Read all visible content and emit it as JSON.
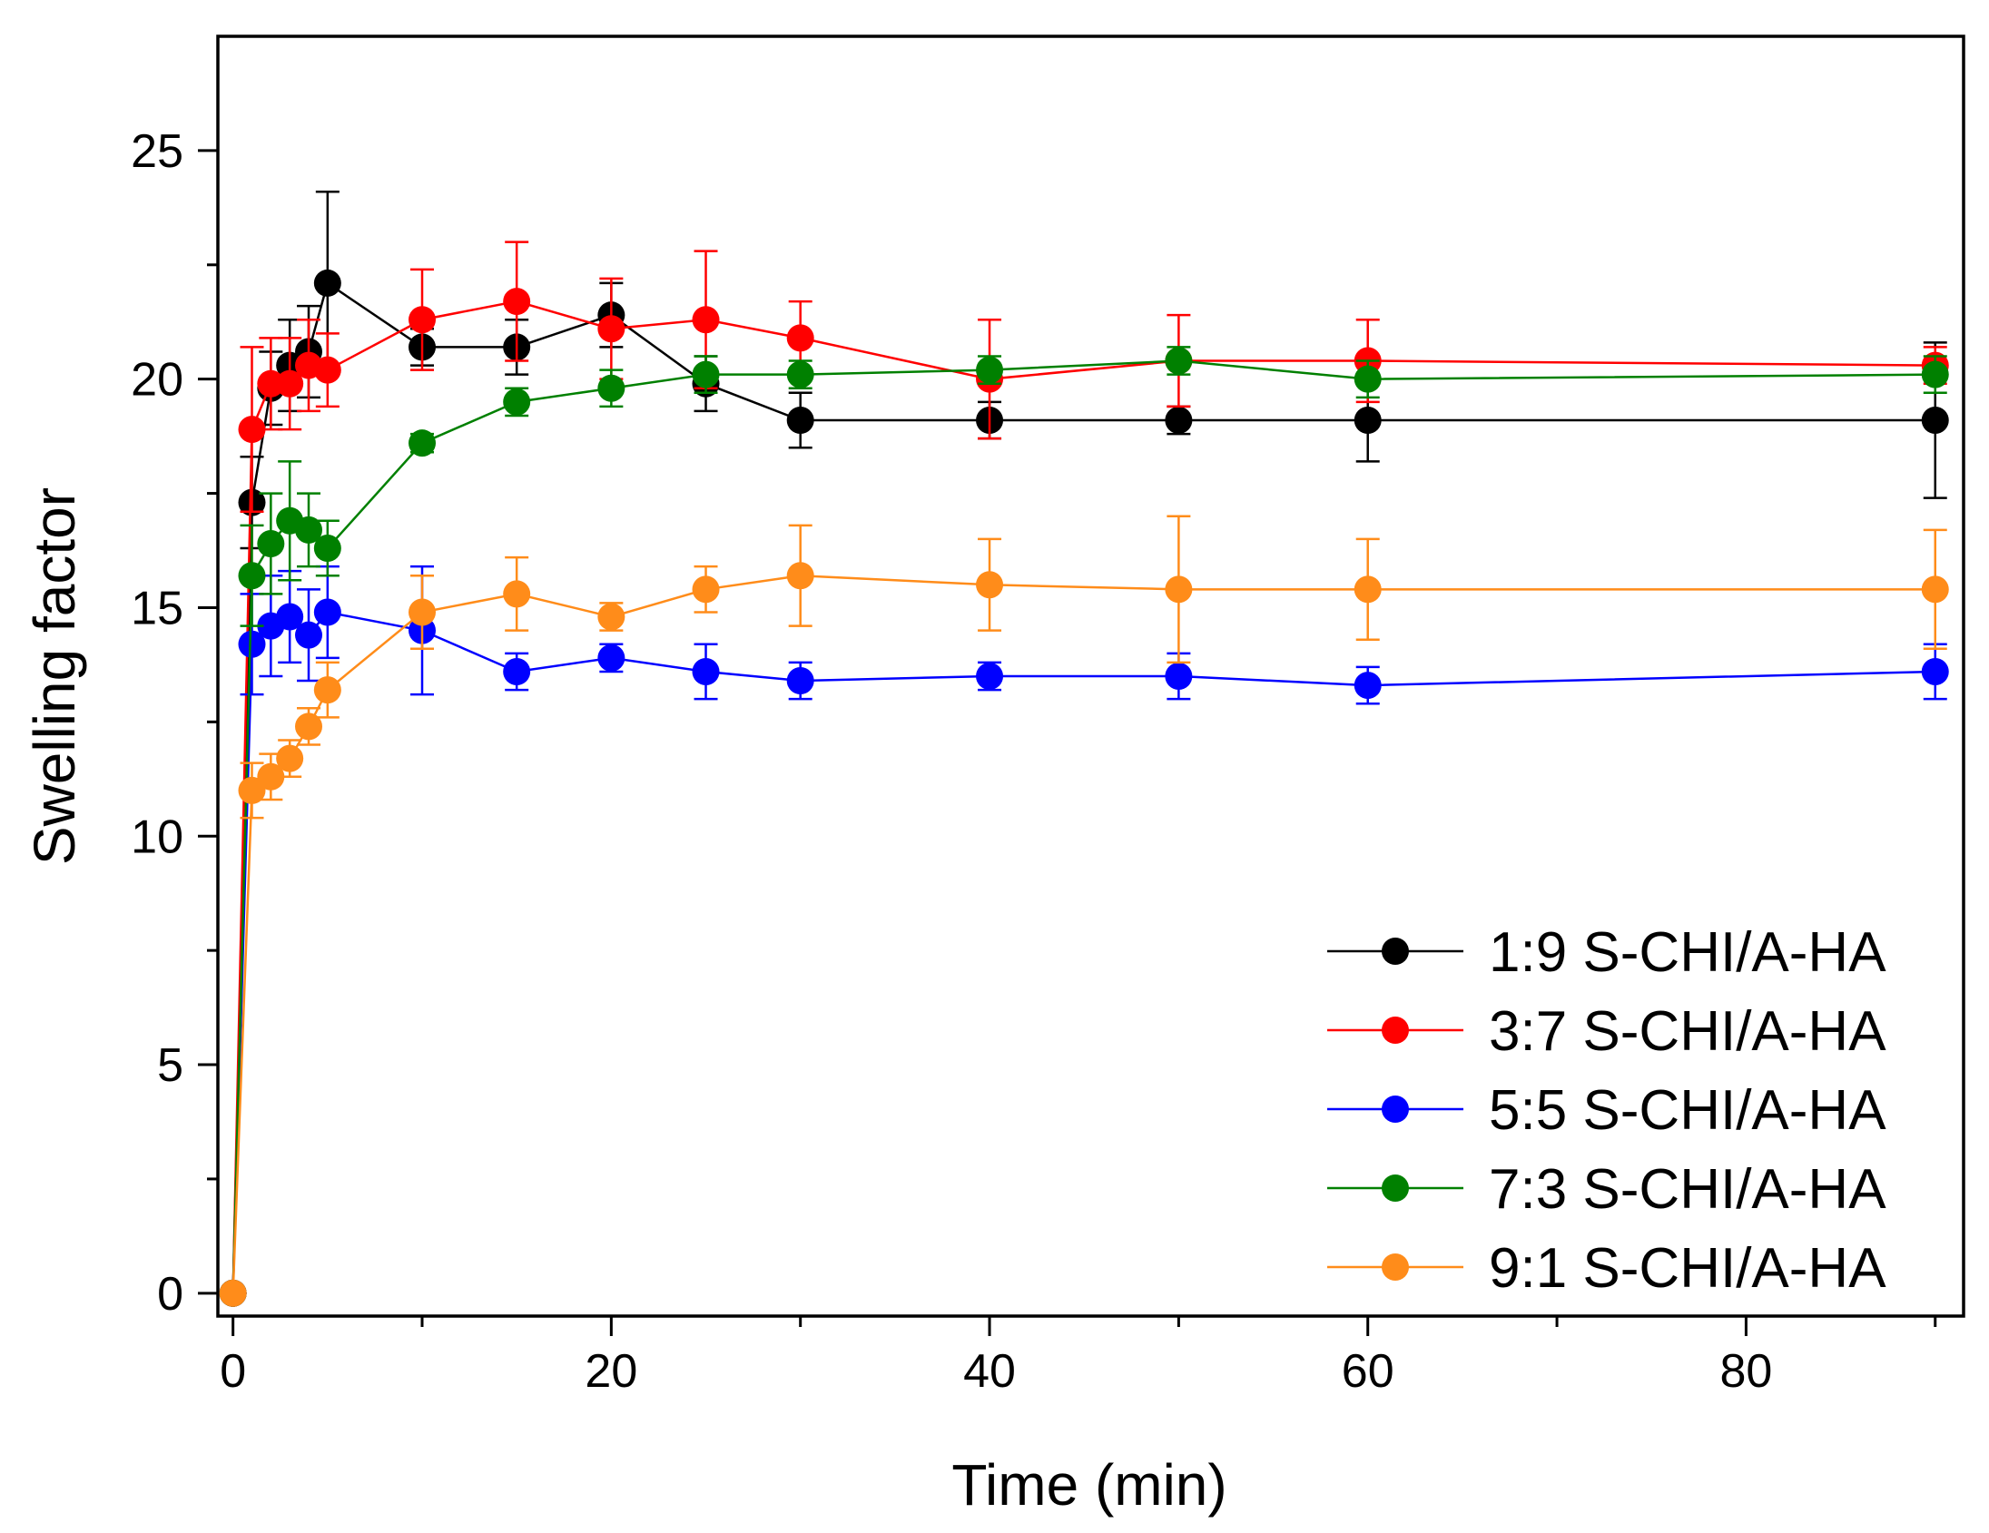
{
  "chart_data": {
    "type": "line",
    "title": "",
    "xlabel": "Time (min)",
    "ylabel": "Swelling factor",
    "xlim": [
      -0.8,
      91.5
    ],
    "ylim": [
      -0.5,
      27.5
    ],
    "xticks": [
      0,
      20,
      40,
      60,
      80
    ],
    "xminor": [
      10,
      30,
      50,
      70,
      90
    ],
    "yticks": [
      0,
      5,
      10,
      15,
      20,
      25
    ],
    "yminor": [
      2.5,
      7.5,
      12.5,
      17.5,
      22.5
    ],
    "grid": false,
    "legend_position": "bottom-right",
    "x": [
      0,
      1,
      2,
      3,
      4,
      5,
      10,
      15,
      20,
      25,
      30,
      40,
      50,
      60,
      90
    ],
    "series": [
      {
        "name": "1:9 S-CHI/A-HA",
        "color": "#000000",
        "values": [
          0,
          17.3,
          19.8,
          20.3,
          20.6,
          22.1,
          20.7,
          20.7,
          21.4,
          19.9,
          19.1,
          19.1,
          19.1,
          19.1,
          19.1
        ],
        "errors": [
          0,
          1.0,
          0.8,
          1.0,
          1.0,
          2.0,
          0.4,
          0.6,
          0.7,
          0.6,
          0.6,
          0.4,
          0.3,
          0.9,
          1.7
        ]
      },
      {
        "name": "3:7 S-CHI/A-HA",
        "color": "#ff0000",
        "values": [
          0,
          18.9,
          19.9,
          19.9,
          20.3,
          20.2,
          21.3,
          21.7,
          21.1,
          21.3,
          20.9,
          20.0,
          20.4,
          20.4,
          20.3
        ],
        "errors": [
          0,
          1.8,
          1.0,
          1.0,
          1.0,
          0.8,
          1.1,
          1.3,
          1.1,
          1.5,
          0.8,
          1.3,
          1.0,
          0.9,
          0.4
        ]
      },
      {
        "name": "5:5 S-CHI/A-HA",
        "color": "#0000ff",
        "values": [
          0,
          14.2,
          14.6,
          14.8,
          14.4,
          14.9,
          14.5,
          13.6,
          13.9,
          13.6,
          13.4,
          13.5,
          13.5,
          13.3,
          13.6
        ],
        "errors": [
          0,
          1.1,
          1.1,
          1.0,
          1.0,
          1.0,
          1.4,
          0.4,
          0.3,
          0.6,
          0.4,
          0.3,
          0.5,
          0.4,
          0.6
        ]
      },
      {
        "name": "7:3 S-CHI/A-HA",
        "color": "#008000",
        "values": [
          0,
          15.7,
          16.4,
          16.9,
          16.7,
          16.3,
          18.6,
          19.5,
          19.8,
          20.1,
          20.1,
          20.2,
          20.4,
          20.0,
          20.1
        ],
        "errors": [
          0,
          1.1,
          1.1,
          1.3,
          0.8,
          0.6,
          0.2,
          0.3,
          0.4,
          0.4,
          0.3,
          0.3,
          0.3,
          0.4,
          0.4
        ]
      },
      {
        "name": "9:1 S-CHI/A-HA",
        "color": "#ff8c1a",
        "values": [
          0,
          11.0,
          11.3,
          11.7,
          12.4,
          13.2,
          14.9,
          15.3,
          14.8,
          15.4,
          15.7,
          15.5,
          15.4,
          15.4,
          15.4
        ],
        "errors": [
          0,
          0.6,
          0.5,
          0.4,
          0.4,
          0.6,
          0.8,
          0.8,
          0.3,
          0.5,
          1.1,
          1.0,
          1.6,
          1.1,
          1.3
        ]
      }
    ]
  }
}
